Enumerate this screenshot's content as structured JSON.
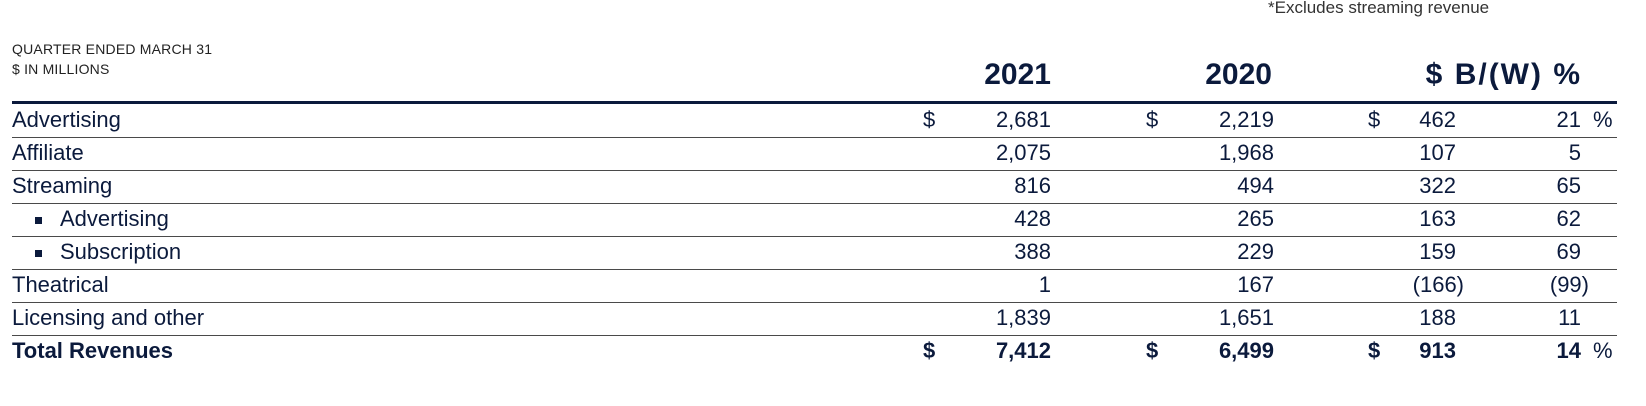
{
  "footnote": "*Excludes streaming revenue",
  "header": {
    "line1": "QUARTER ENDED MARCH 31",
    "line2": "$ IN MILLIONS",
    "col_2021": "2021",
    "col_2020": "2020",
    "col_bw": "$ B/(W) %"
  },
  "rows": [
    {
      "label": "Advertising",
      "d1": "$",
      "v2021": "2,681",
      "d2": "$",
      "v2020": "2,219",
      "d3": "$",
      "bw": "462",
      "pct": "21",
      "pct_sym": "%"
    },
    {
      "label": "Affiliate",
      "v2021": "2,075",
      "v2020": "1,968",
      "bw": "107",
      "pct": "5"
    },
    {
      "label": "Streaming",
      "v2021": "816",
      "v2020": "494",
      "bw": "322",
      "pct": "65"
    },
    {
      "label": "Advertising",
      "v2021": "428",
      "v2020": "265",
      "bw": "163",
      "pct": "62"
    },
    {
      "label": "Subscription",
      "v2021": "388",
      "v2020": "229",
      "bw": "159",
      "pct": "69"
    },
    {
      "label": "Theatrical",
      "v2021": "1",
      "v2020": "167",
      "bw": "(166)",
      "pct": "(99)"
    },
    {
      "label": "Licensing and other",
      "v2021": "1,839",
      "v2020": "1,651",
      "bw": "188",
      "pct": "11"
    },
    {
      "label": "Total Revenues",
      "d1": "$",
      "v2021": "7,412",
      "d2": "$",
      "v2020": "6,499",
      "d3": "$",
      "bw": "913",
      "pct": "14",
      "pct_sym": "%"
    }
  ]
}
